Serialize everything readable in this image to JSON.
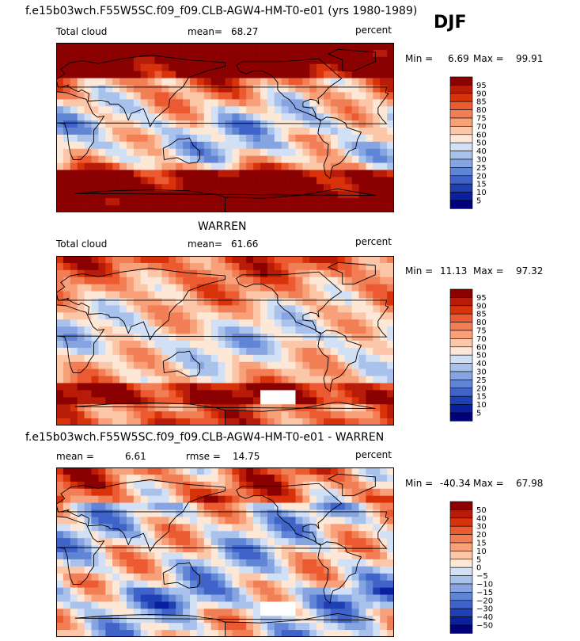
{
  "header": {
    "title": "f.e15b03wch.F55W5SC.f09_f09.CLB-AGW4-HM-T0-e01 (yrs 1980-1989)",
    "season": "DJF"
  },
  "colors": {
    "land_outline": "#000000",
    "no_data": "#ffffff"
  },
  "chart_data": [
    {
      "type": "heatmap",
      "id": "model",
      "variable": "Total cloud",
      "units": "percent",
      "mean_label": "mean=",
      "mean": "68.27",
      "min_label": "Min =",
      "min": "6.69",
      "max_label": "Max =",
      "max": "99.91",
      "colorbar": {
        "levels": [
          "95",
          "90",
          "85",
          "80",
          "75",
          "70",
          "60",
          "50",
          "40",
          "30",
          "25",
          "20",
          "15",
          "10",
          "5"
        ],
        "colors": [
          "#8b0000",
          "#b81c08",
          "#d8320a",
          "#eb5a30",
          "#f27e55",
          "#f7a07a",
          "#fbc7a8",
          "#fde8d8",
          "#d2e0f5",
          "#a9c2ec",
          "#85a4e1",
          "#6185d5",
          "#3f63c8",
          "#1f3fb5",
          "#0a1fa0",
          "#00007a"
        ]
      }
    },
    {
      "type": "heatmap",
      "id": "obs",
      "dataset_title": "WARREN",
      "variable": "Total cloud",
      "units": "percent",
      "mean_label": "mean=",
      "mean": "61.66",
      "min_label": "Min =",
      "min": "11.13",
      "max_label": "Max =",
      "max": "97.32",
      "colorbar": {
        "levels": [
          "95",
          "90",
          "85",
          "80",
          "75",
          "70",
          "60",
          "50",
          "40",
          "30",
          "25",
          "20",
          "15",
          "10",
          "5"
        ],
        "colors": [
          "#8b0000",
          "#b81c08",
          "#d8320a",
          "#eb5a30",
          "#f27e55",
          "#f7a07a",
          "#fbc7a8",
          "#fde8d8",
          "#d2e0f5",
          "#a9c2ec",
          "#85a4e1",
          "#6185d5",
          "#3f63c8",
          "#1f3fb5",
          "#0a1fa0",
          "#00007a"
        ]
      }
    },
    {
      "type": "heatmap",
      "id": "diff",
      "dataset_title": "f.e15b03wch.F55W5SC.f09_f09.CLB-AGW4-HM-T0-e01 - WARREN",
      "mean_label": "mean =",
      "mean": "6.61",
      "rmse_label": "rmse =",
      "rmse": "14.75",
      "units": "percent",
      "min_label": "Min =",
      "min": "-40.34",
      "max_label": "Max =",
      "max": "67.98",
      "colorbar": {
        "levels": [
          "50",
          "40",
          "30",
          "20",
          "15",
          "10",
          "5",
          "0",
          "−5",
          "−10",
          "−15",
          "−20",
          "−30",
          "−40",
          "−50"
        ],
        "colors": [
          "#8b0000",
          "#b81c08",
          "#d8320a",
          "#eb5a30",
          "#f27e55",
          "#f7a07a",
          "#fbc7a8",
          "#fde8d8",
          "#d2e0f5",
          "#a9c2ec",
          "#85a4e1",
          "#6185d5",
          "#3f63c8",
          "#1f3fb5",
          "#0a1fa0",
          "#00007a"
        ]
      }
    }
  ]
}
